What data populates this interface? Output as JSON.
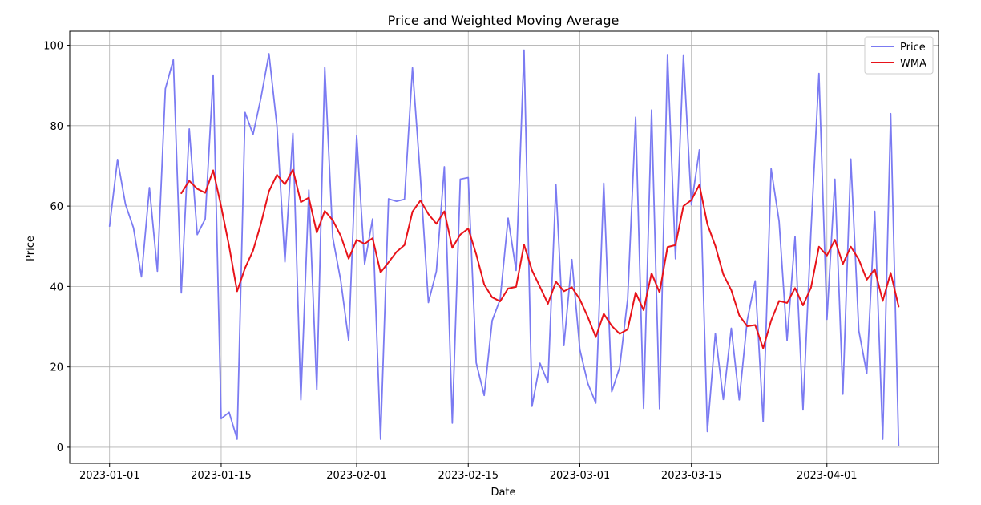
{
  "chart_data": {
    "type": "line",
    "title": "Price and Weighted Moving Average",
    "xlabel": "Date",
    "ylabel": "Price",
    "start_date": "2023-01-01",
    "x_range_days": [
      -5,
      104
    ],
    "ylim": [
      -4,
      103.5
    ],
    "x_ticks": [
      {
        "day": 0,
        "label": "2023-01-01"
      },
      {
        "day": 14,
        "label": "2023-01-15"
      },
      {
        "day": 31,
        "label": "2023-02-01"
      },
      {
        "day": 45,
        "label": "2023-02-15"
      },
      {
        "day": 59,
        "label": "2023-03-01"
      },
      {
        "day": 73,
        "label": "2023-03-15"
      },
      {
        "day": 90,
        "label": "2023-04-01"
      }
    ],
    "y_ticks": [
      0,
      20,
      40,
      60,
      80,
      100
    ],
    "grid": true,
    "legend_position": "top-right",
    "series": [
      {
        "name": "Price",
        "color": "#7b7bf2",
        "start_day": 0,
        "values": [
          55.0,
          71.6,
          60.4,
          54.6,
          42.4,
          64.6,
          43.8,
          89.2,
          96.4,
          38.4,
          79.2,
          52.9,
          56.8,
          92.6,
          7.1,
          8.7,
          2.0,
          83.3,
          77.8,
          87.0,
          97.9,
          79.9,
          46.1,
          78.1,
          11.8,
          64.0,
          14.3,
          94.5,
          52.2,
          41.5,
          26.5,
          77.5,
          45.6,
          56.8,
          2.0,
          61.8,
          61.2,
          61.7,
          94.4,
          67.0,
          36.0,
          43.8,
          69.8,
          6.0,
          66.7,
          67.1,
          21.0,
          12.9,
          31.5,
          36.8,
          57.0,
          44.0,
          98.8,
          10.2,
          20.9,
          16.1,
          65.3,
          25.3,
          46.7,
          24.3,
          15.9,
          11.0,
          65.7,
          13.8,
          19.9,
          36.9,
          82.1,
          9.7,
          83.9,
          9.6,
          97.7,
          46.9,
          97.6,
          60.3,
          74.0,
          3.9,
          28.3,
          11.9,
          29.6,
          11.8,
          31.6,
          41.4,
          6.4,
          69.3,
          56.2,
          26.6,
          52.4,
          9.3,
          53.8,
          93.0,
          31.8,
          66.7,
          13.2,
          71.7,
          29.0,
          18.4,
          58.7,
          2.0,
          83.0,
          0.4
        ]
      },
      {
        "name": "WMA",
        "color": "#e8131a",
        "start_day": 9,
        "values": [
          63.2,
          66.3,
          64.3,
          63.3,
          68.9,
          59.9,
          50.0,
          38.8,
          44.6,
          48.9,
          55.7,
          63.7,
          67.8,
          65.4,
          69.1,
          61.0,
          62.1,
          53.4,
          58.8,
          56.5,
          52.6,
          46.9,
          51.6,
          50.6,
          52.0,
          43.5,
          46.0,
          48.6,
          50.3,
          58.6,
          61.4,
          58.0,
          55.6,
          58.7,
          49.6,
          52.9,
          54.4,
          48.0,
          40.5,
          37.3,
          36.3,
          39.5,
          39.9,
          50.4,
          44.0,
          39.9,
          35.7,
          41.2,
          38.8,
          39.8,
          36.8,
          32.4,
          27.4,
          33.2,
          30.2,
          28.2,
          29.3,
          38.5,
          34.1,
          43.3,
          38.5,
          49.8,
          50.3,
          60.0,
          61.5,
          65.3,
          55.5,
          50.1,
          43.0,
          39.1,
          32.8,
          30.1,
          30.4,
          24.6,
          31.5,
          36.4,
          35.9,
          39.6,
          35.3,
          39.7,
          49.9,
          47.7,
          51.6,
          45.6,
          49.9,
          46.7,
          41.7,
          44.3,
          36.4,
          43.4,
          35.0
        ]
      }
    ]
  }
}
